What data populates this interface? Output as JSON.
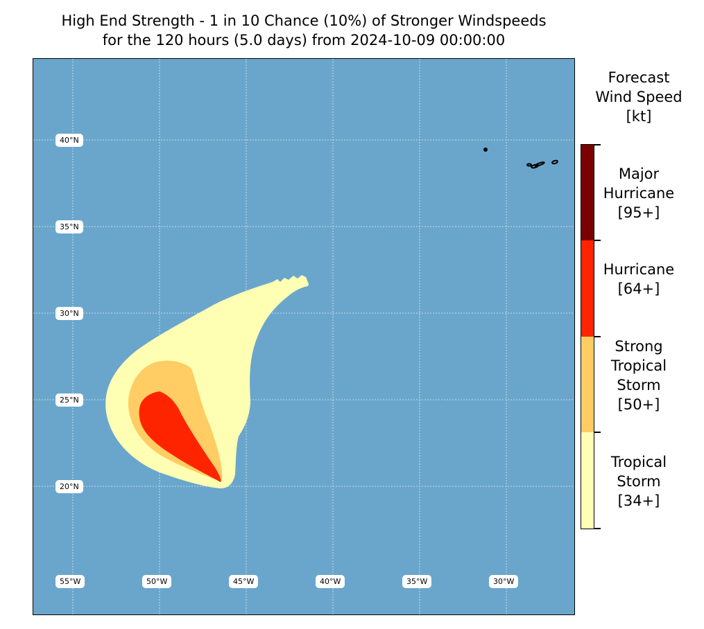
{
  "title": {
    "line1": "High End Strength - 1 in 10 Chance (10%) of Stronger Windspeeds",
    "line2": "for the 120 hours (5.0 days) from 2024-10-09 00:00:00"
  },
  "map": {
    "background_color": "#6aa6cc",
    "lat_labels": [
      "40°N",
      "35°N",
      "30°N",
      "25°N",
      "20°N"
    ],
    "lon_labels": [
      "55°W",
      "50°W",
      "45°W",
      "40°W",
      "35°W",
      "30°W"
    ],
    "wind_zones": [
      {
        "category": "Tropical Storm",
        "color": "#ffffb4"
      },
      {
        "category": "Strong Tropical Storm",
        "color": "#ffcd64"
      },
      {
        "category": "Hurricane",
        "color": "#ff2400"
      }
    ],
    "islands": "Azores"
  },
  "colorbar": {
    "title_lines": [
      "Forecast",
      "Wind Speed",
      "[kt]"
    ],
    "categories": [
      {
        "lines": [
          "Major",
          "Hurricane",
          "[95+]"
        ],
        "color": "#7a0000"
      },
      {
        "lines": [
          "Hurricane",
          "[64+]"
        ],
        "color": "#ff2400"
      },
      {
        "lines": [
          "Strong",
          "Tropical",
          "Storm",
          "[50+]"
        ],
        "color": "#ffcd64"
      },
      {
        "lines": [
          "Tropical",
          "Storm",
          "[34+]"
        ],
        "color": "#ffffb4"
      }
    ]
  }
}
